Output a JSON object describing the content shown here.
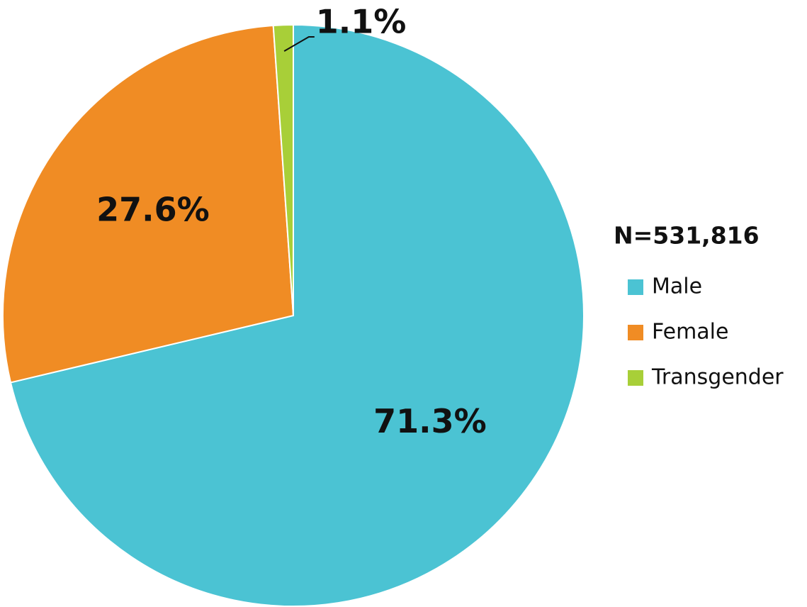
{
  "chart_data": {
    "type": "pie",
    "legend_title": "N=531,816",
    "categories": [
      "Male",
      "Female",
      "Transgender"
    ],
    "values": [
      71.3,
      27.6,
      1.1
    ],
    "value_labels": [
      "71.3%",
      "27.6%",
      "1.1%"
    ],
    "colors": [
      "#4bc3d3",
      "#f08c24",
      "#a8cf38"
    ],
    "legend": "right"
  }
}
